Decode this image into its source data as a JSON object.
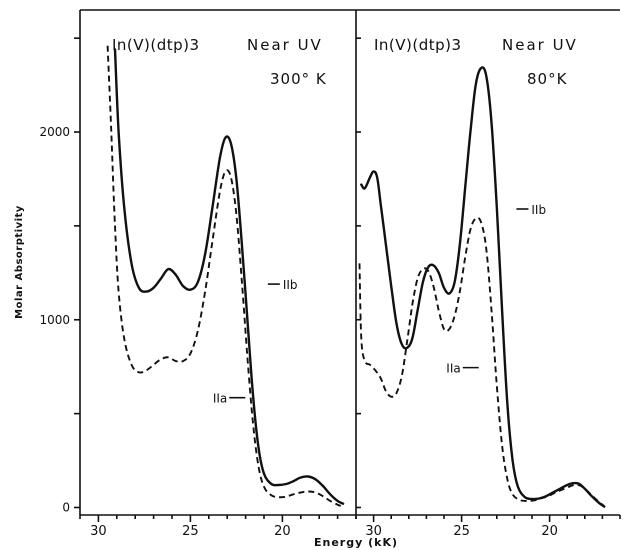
{
  "chart_data": [
    {
      "type": "line",
      "title": "In(V)(dtp)3",
      "subtitle": "Near UV",
      "temperature": "300° K",
      "xlabel": "Energy (kK)",
      "ylabel": "Molar Absorptivity",
      "xlim": [
        31,
        16
      ],
      "ylim": [
        -40,
        2650
      ],
      "x_ticks": [
        30,
        25,
        20
      ],
      "y_ticks": [
        0,
        1000,
        2000
      ],
      "series": [
        {
          "name": "IIb",
          "style": "solid",
          "label_at": [
            20.9,
            1190
          ],
          "points": [
            [
              29.1,
              2440
            ],
            [
              28.9,
              2000
            ],
            [
              28.6,
              1600
            ],
            [
              28.2,
              1300
            ],
            [
              27.8,
              1170
            ],
            [
              27.4,
              1150
            ],
            [
              27.0,
              1170
            ],
            [
              26.6,
              1220
            ],
            [
              26.2,
              1270
            ],
            [
              25.8,
              1240
            ],
            [
              25.4,
              1180
            ],
            [
              25.0,
              1160
            ],
            [
              24.6,
              1200
            ],
            [
              24.2,
              1350
            ],
            [
              23.8,
              1600
            ],
            [
              23.4,
              1860
            ],
            [
              23.1,
              1970
            ],
            [
              22.8,
              1940
            ],
            [
              22.5,
              1750
            ],
            [
              22.2,
              1400
            ],
            [
              21.9,
              1000
            ],
            [
              21.6,
              600
            ],
            [
              21.3,
              320
            ],
            [
              21.0,
              180
            ],
            [
              20.6,
              125
            ],
            [
              20.2,
              120
            ],
            [
              19.8,
              125
            ],
            [
              19.4,
              140
            ],
            [
              19.0,
              160
            ],
            [
              18.6,
              165
            ],
            [
              18.2,
              150
            ],
            [
              17.8,
              115
            ],
            [
              17.4,
              70
            ],
            [
              17.0,
              35
            ],
            [
              16.7,
              20
            ]
          ]
        },
        {
          "name": "IIa",
          "style": "dashed",
          "label_at": [
            21.8,
            585
          ],
          "points": [
            [
              29.5,
              2460
            ],
            [
              29.3,
              2000
            ],
            [
              29.1,
              1500
            ],
            [
              28.9,
              1150
            ],
            [
              28.6,
              900
            ],
            [
              28.2,
              760
            ],
            [
              27.8,
              720
            ],
            [
              27.4,
              730
            ],
            [
              27.0,
              760
            ],
            [
              26.6,
              790
            ],
            [
              26.2,
              800
            ],
            [
              25.8,
              780
            ],
            [
              25.4,
              780
            ],
            [
              25.0,
              820
            ],
            [
              24.6,
              940
            ],
            [
              24.2,
              1150
            ],
            [
              23.8,
              1420
            ],
            [
              23.4,
              1680
            ],
            [
              23.1,
              1790
            ],
            [
              22.8,
              1760
            ],
            [
              22.5,
              1560
            ],
            [
              22.2,
              1200
            ],
            [
              21.9,
              800
            ],
            [
              21.6,
              450
            ],
            [
              21.3,
              220
            ],
            [
              21.0,
              110
            ],
            [
              20.6,
              65
            ],
            [
              20.2,
              55
            ],
            [
              19.8,
              58
            ],
            [
              19.4,
              70
            ],
            [
              19.0,
              80
            ],
            [
              18.6,
              85
            ],
            [
              18.2,
              80
            ],
            [
              17.8,
              60
            ],
            [
              17.4,
              35
            ],
            [
              17.0,
              15
            ],
            [
              16.7,
              5
            ]
          ]
        }
      ]
    },
    {
      "type": "line",
      "title": "In(V)(dtp)3",
      "subtitle": "Near UV",
      "temperature": "80°K",
      "xlim": [
        31,
        16
      ],
      "ylim": [
        -40,
        2650
      ],
      "x_ticks": [
        30,
        25,
        20
      ],
      "series": [
        {
          "name": "IIb",
          "style": "solid",
          "label_at": [
            22.0,
            1590
          ],
          "points": [
            [
              30.7,
              1720
            ],
            [
              30.5,
              1700
            ],
            [
              30.2,
              1760
            ],
            [
              30.0,
              1790
            ],
            [
              29.8,
              1760
            ],
            [
              29.6,
              1620
            ],
            [
              29.3,
              1400
            ],
            [
              29.0,
              1180
            ],
            [
              28.7,
              980
            ],
            [
              28.4,
              870
            ],
            [
              28.1,
              850
            ],
            [
              27.8,
              900
            ],
            [
              27.5,
              1050
            ],
            [
              27.2,
              1200
            ],
            [
              26.9,
              1280
            ],
            [
              26.6,
              1290
            ],
            [
              26.3,
              1250
            ],
            [
              26.0,
              1170
            ],
            [
              25.7,
              1140
            ],
            [
              25.4,
              1200
            ],
            [
              25.1,
              1400
            ],
            [
              24.8,
              1700
            ],
            [
              24.5,
              2000
            ],
            [
              24.2,
              2250
            ],
            [
              23.9,
              2340
            ],
            [
              23.6,
              2300
            ],
            [
              23.3,
              2050
            ],
            [
              23.0,
              1600
            ],
            [
              22.7,
              1050
            ],
            [
              22.4,
              550
            ],
            [
              22.1,
              250
            ],
            [
              21.8,
              110
            ],
            [
              21.4,
              55
            ],
            [
              21.0,
              45
            ],
            [
              20.6,
              48
            ],
            [
              20.2,
              60
            ],
            [
              19.8,
              80
            ],
            [
              19.4,
              100
            ],
            [
              19.0,
              120
            ],
            [
              18.6,
              130
            ],
            [
              18.3,
              125
            ],
            [
              18.0,
              100
            ],
            [
              17.6,
              60
            ],
            [
              17.2,
              25
            ],
            [
              16.9,
              5
            ]
          ]
        },
        {
          "name": "IIa",
          "style": "dashed",
          "label_at": [
            23.8,
            745
          ],
          "points": [
            [
              30.8,
              1300
            ],
            [
              30.7,
              900
            ],
            [
              30.5,
              780
            ],
            [
              30.2,
              760
            ],
            [
              29.9,
              730
            ],
            [
              29.6,
              690
            ],
            [
              29.3,
              620
            ],
            [
              29.0,
              590
            ],
            [
              28.7,
              610
            ],
            [
              28.4,
              700
            ],
            [
              28.1,
              880
            ],
            [
              27.8,
              1080
            ],
            [
              27.5,
              1220
            ],
            [
              27.2,
              1270
            ],
            [
              26.9,
              1260
            ],
            [
              26.6,
              1180
            ],
            [
              26.3,
              1050
            ],
            [
              26.0,
              950
            ],
            [
              25.7,
              950
            ],
            [
              25.4,
              1020
            ],
            [
              25.1,
              1150
            ],
            [
              24.8,
              1330
            ],
            [
              24.5,
              1480
            ],
            [
              24.2,
              1540
            ],
            [
              23.9,
              1520
            ],
            [
              23.6,
              1380
            ],
            [
              23.3,
              1050
            ],
            [
              23.0,
              650
            ],
            [
              22.7,
              330
            ],
            [
              22.4,
              150
            ],
            [
              22.1,
              70
            ],
            [
              21.7,
              40
            ],
            [
              21.3,
              35
            ],
            [
              20.9,
              38
            ],
            [
              20.5,
              48
            ],
            [
              20.1,
              60
            ],
            [
              19.7,
              78
            ],
            [
              19.3,
              95
            ],
            [
              18.9,
              110
            ],
            [
              18.6,
              120
            ],
            [
              18.3,
              118
            ],
            [
              18.0,
              100
            ],
            [
              17.6,
              65
            ],
            [
              17.2,
              30
            ],
            [
              16.9,
              8
            ]
          ]
        }
      ]
    }
  ]
}
